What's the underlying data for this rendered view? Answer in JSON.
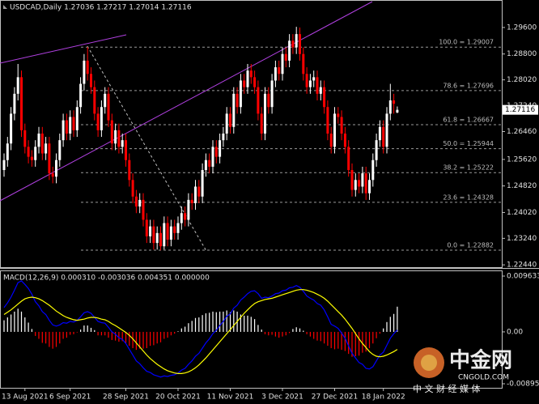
{
  "chart_data": {
    "type": "candlestick",
    "title": "USDCAD,Daily  1.27036 1.27217 1.27014 1.27116",
    "categories": [
      null,
      null,
      null,
      null,
      null,
      null,
      "13 Aug 2021",
      null,
      null,
      null,
      null,
      null,
      null,
      null,
      null,
      null,
      null,
      null,
      null,
      "6 Sep 2021",
      null,
      null,
      null,
      null,
      null,
      null,
      null,
      null,
      null,
      null,
      null,
      null,
      null,
      null,
      null,
      "28 Sep 2021",
      null,
      null,
      null,
      null,
      null,
      null,
      null,
      null,
      null,
      null,
      null,
      null,
      null,
      null,
      "20 Oct 2021",
      null,
      null,
      null,
      null,
      null,
      null,
      null,
      null,
      null,
      null,
      null,
      null,
      null,
      null,
      "11 Nov 2021",
      null,
      null,
      null,
      null,
      null,
      null,
      null,
      null,
      null,
      null,
      null,
      null,
      null,
      null,
      "3 Dec 2021",
      null,
      null,
      null,
      null,
      null,
      null,
      null,
      null,
      null,
      null,
      null,
      null,
      null,
      null,
      "27 Dec 2021",
      null,
      null,
      null,
      null,
      null,
      null,
      null,
      null,
      null,
      null,
      null,
      null,
      null,
      "18 Jan 2022",
      null,
      null,
      null,
      null
    ],
    "open": [
      1.253,
      1.256,
      1.261,
      1.27,
      1.276,
      1.281,
      1.265,
      1.26,
      1.257,
      1.256,
      1.26,
      1.264,
      1.258,
      1.261,
      1.252,
      1.251,
      1.256,
      1.262,
      1.268,
      1.264,
      1.269,
      1.265,
      1.272,
      1.279,
      1.286,
      1.282,
      1.278,
      1.27,
      1.265,
      1.272,
      1.276,
      1.268,
      1.261,
      1.265,
      1.26,
      1.262,
      1.256,
      1.25,
      1.245,
      1.242,
      1.244,
      1.238,
      1.233,
      1.236,
      1.231,
      1.234,
      1.23,
      1.237,
      1.232,
      1.236,
      1.234,
      1.237,
      1.24,
      1.238,
      1.244,
      1.243,
      1.248,
      1.245,
      1.253,
      1.256,
      1.254,
      1.26,
      1.257,
      1.262,
      1.264,
      1.27,
      1.266,
      1.276,
      1.272,
      1.28,
      1.278,
      1.283,
      1.281,
      1.278,
      1.27,
      1.264,
      1.276,
      1.272,
      1.28,
      1.284,
      1.282,
      1.288,
      1.286,
      1.292,
      1.29,
      1.294,
      1.288,
      1.282,
      1.278,
      1.28,
      1.281,
      1.276,
      1.278,
      1.272,
      1.264,
      1.26,
      1.27,
      1.269,
      1.264,
      1.26,
      1.253,
      1.247,
      1.25,
      1.248,
      1.252,
      1.246,
      1.25,
      1.256,
      1.262,
      1.266,
      1.26,
      1.27,
      1.274,
      1.27036
    ],
    "high": [
      1.258,
      1.263,
      1.272,
      1.278,
      1.285,
      1.283,
      1.267,
      1.262,
      1.259,
      1.262,
      1.266,
      1.266,
      1.263,
      1.263,
      1.254,
      1.258,
      1.264,
      1.27,
      1.27,
      1.271,
      1.271,
      1.274,
      1.281,
      1.288,
      1.2901,
      1.284,
      1.28,
      1.272,
      1.274,
      1.278,
      1.278,
      1.27,
      1.267,
      1.267,
      1.264,
      1.264,
      1.258,
      1.252,
      1.247,
      1.246,
      1.246,
      1.24,
      1.238,
      1.238,
      1.236,
      1.236,
      1.239,
      1.239,
      1.238,
      1.238,
      1.239,
      1.242,
      1.242,
      1.246,
      1.246,
      1.25,
      1.25,
      1.255,
      1.258,
      1.258,
      1.262,
      1.262,
      1.264,
      1.266,
      1.272,
      1.272,
      1.278,
      1.278,
      1.282,
      1.282,
      1.285,
      1.285,
      1.283,
      1.28,
      1.272,
      1.278,
      1.278,
      1.282,
      1.286,
      1.286,
      1.29,
      1.29,
      1.294,
      1.294,
      1.2962,
      1.296,
      1.29,
      1.284,
      1.282,
      1.283,
      1.283,
      1.28,
      1.28,
      1.274,
      1.266,
      1.272,
      1.272,
      1.271,
      1.266,
      1.262,
      1.255,
      1.252,
      1.252,
      1.254,
      1.254,
      1.252,
      1.258,
      1.264,
      1.268,
      1.268,
      1.272,
      1.279,
      1.276,
      1.27217
    ],
    "low": [
      1.251,
      1.254,
      1.259,
      1.268,
      1.274,
      1.263,
      1.258,
      1.255,
      1.254,
      1.254,
      1.258,
      1.256,
      1.256,
      1.25,
      1.249,
      1.249,
      1.254,
      1.26,
      1.262,
      1.262,
      1.263,
      1.263,
      1.27,
      1.277,
      1.28,
      1.276,
      1.268,
      1.263,
      1.263,
      1.27,
      1.266,
      1.259,
      1.259,
      1.258,
      1.258,
      1.254,
      1.248,
      1.243,
      1.24,
      1.24,
      1.236,
      1.231,
      1.231,
      1.229,
      1.229,
      1.2288,
      1.229,
      1.23,
      1.23,
      1.232,
      1.232,
      1.235,
      1.236,
      1.236,
      1.241,
      1.241,
      1.243,
      1.243,
      1.251,
      1.252,
      1.252,
      1.255,
      1.255,
      1.26,
      1.262,
      1.264,
      1.264,
      1.27,
      1.27,
      1.276,
      1.276,
      1.279,
      1.276,
      1.268,
      1.262,
      1.262,
      1.27,
      1.27,
      1.278,
      1.28,
      1.28,
      1.284,
      1.284,
      1.288,
      1.288,
      1.286,
      1.28,
      1.276,
      1.276,
      1.278,
      1.274,
      1.274,
      1.27,
      1.262,
      1.258,
      1.258,
      1.267,
      1.262,
      1.258,
      1.251,
      1.245,
      1.245,
      1.246,
      1.246,
      1.244,
      1.244,
      1.248,
      1.254,
      1.26,
      1.258,
      1.258,
      1.268,
      1.27,
      1.27014
    ],
    "close": [
      1.256,
      1.261,
      1.27,
      1.276,
      1.281,
      1.265,
      1.26,
      1.257,
      1.256,
      1.26,
      1.264,
      1.258,
      1.261,
      1.252,
      1.251,
      1.256,
      1.262,
      1.268,
      1.264,
      1.269,
      1.265,
      1.272,
      1.279,
      1.286,
      1.282,
      1.278,
      1.27,
      1.265,
      1.272,
      1.276,
      1.268,
      1.261,
      1.265,
      1.26,
      1.262,
      1.256,
      1.25,
      1.245,
      1.242,
      1.244,
      1.238,
      1.233,
      1.236,
      1.231,
      1.234,
      1.23,
      1.237,
      1.232,
      1.236,
      1.234,
      1.237,
      1.24,
      1.238,
      1.244,
      1.243,
      1.248,
      1.245,
      1.253,
      1.256,
      1.254,
      1.26,
      1.257,
      1.262,
      1.264,
      1.27,
      1.266,
      1.276,
      1.272,
      1.28,
      1.278,
      1.283,
      1.281,
      1.278,
      1.27,
      1.264,
      1.276,
      1.272,
      1.28,
      1.284,
      1.282,
      1.288,
      1.286,
      1.292,
      1.29,
      1.294,
      1.288,
      1.282,
      1.278,
      1.28,
      1.281,
      1.276,
      1.278,
      1.272,
      1.264,
      1.26,
      1.27,
      1.269,
      1.264,
      1.26,
      1.253,
      1.247,
      1.25,
      1.248,
      1.252,
      1.246,
      1.25,
      1.256,
      1.262,
      1.266,
      1.26,
      1.27,
      1.274,
      1.273,
      1.27116
    ],
    "bull_color": "#ffffff",
    "bear_color": "#ff0000",
    "ylim": [
      1.2237,
      1.3038
    ],
    "yticks": [
      {
        "value": 1.296,
        "label": "1.29600"
      },
      {
        "value": 1.288,
        "label": "1.28800"
      },
      {
        "value": 1.2802,
        "label": "1.28020"
      },
      {
        "value": 1.2724,
        "label": "1.27240"
      },
      {
        "value": 1.2646,
        "label": "1.26460"
      },
      {
        "value": 1.2562,
        "label": "1.25620"
      },
      {
        "value": 1.2482,
        "label": "1.24820"
      },
      {
        "value": 1.2402,
        "label": "1.24020"
      },
      {
        "value": 1.2324,
        "label": "1.23240"
      },
      {
        "value": 1.2244,
        "label": "1.22440"
      }
    ],
    "fib_levels": [
      {
        "value": 1.29007,
        "label": "100.0 = 1.29007"
      },
      {
        "value": 1.27696,
        "label": "78.6 = 1.27696"
      },
      {
        "value": 1.26667,
        "label": "61.8 = 1.26667"
      },
      {
        "value": 1.25944,
        "label": "50.0 = 1.25944"
      },
      {
        "value": 1.25222,
        "label": "38.2 = 1.25222"
      },
      {
        "value": 1.24328,
        "label": "23.6 = 1.24328"
      },
      {
        "value": 1.22882,
        "label": "0.0 = 1.22882"
      }
    ],
    "indicator": {
      "type": "macd",
      "title": "MACD(12,26,9) 0.000310 -0.003036 0.004351 0.000000",
      "ylim": [
        -0.008955,
        0.009633
      ],
      "yticks": [
        0.009633,
        {
          "value": 0,
          "label": "0.00"
        },
        -0.008955
      ],
      "histogram": {
        "pos_color": "#ffffff",
        "neg_color": "#ff0000",
        "values": [
          0.002,
          0.0025,
          0.003,
          0.0035,
          0.004,
          0.0035,
          0.0025,
          0.0016,
          0.0005,
          -0.0007,
          -0.0012,
          -0.0019,
          -0.002,
          -0.0026,
          -0.0029,
          -0.0026,
          -0.002,
          -0.0012,
          -0.001,
          -0.0005,
          -0.0004,
          -0.0001,
          0.0004,
          0.0011,
          0.0011,
          0.0007,
          0.0003,
          -0.0006,
          -0.0006,
          -0.0006,
          -0.001,
          -0.0014,
          -0.0015,
          -0.0017,
          -0.0016,
          -0.0019,
          -0.0024,
          -0.0028,
          -0.0031,
          -0.0029,
          -0.0029,
          -0.0028,
          -0.0024,
          -0.0023,
          -0.002,
          -0.0018,
          -0.0012,
          -0.001,
          -0.0006,
          -0.0003,
          0.0001,
          0.0006,
          0.0009,
          0.0015,
          0.0019,
          0.0024,
          0.0025,
          0.0029,
          0.0032,
          0.0033,
          0.0035,
          0.0034,
          0.0035,
          0.0035,
          0.0037,
          0.0034,
          0.0037,
          0.0035,
          0.003,
          0.0028,
          0.0028,
          0.0026,
          0.0022,
          0.0012,
          0.0004,
          -0.0004,
          -0.0006,
          -0.0005,
          -0.0008,
          -0.001,
          -0.0008,
          -0.0006,
          -0.0002,
          0.0005,
          0.0008,
          0.0006,
          0.0002,
          -0.0004,
          -0.0008,
          -0.0012,
          -0.0015,
          -0.0016,
          -0.002,
          -0.0024,
          -0.0028,
          -0.003,
          -0.0029,
          -0.0031,
          -0.0033,
          -0.0038,
          -0.0043,
          -0.0042,
          -0.0041,
          -0.0036,
          -0.0034,
          -0.0028,
          -0.002,
          -0.0011,
          -0.0003,
          0.0006,
          0.0017,
          0.0026,
          0.0031,
          0.004351
        ]
      },
      "series": [
        {
          "color": "#0000ff",
          "values": [
            0.0042,
            0.005,
            0.006,
            0.0072,
            0.0085,
            0.0088,
            0.0082,
            0.0075,
            0.0065,
            0.0052,
            0.0045,
            0.0035,
            0.003,
            0.002,
            0.0012,
            0.001,
            0.0012,
            0.0016,
            0.0015,
            0.0018,
            0.0017,
            0.002,
            0.0026,
            0.0033,
            0.0035,
            0.0032,
            0.0025,
            0.0018,
            0.0016,
            0.0015,
            0.0008,
            0.0,
            -0.0004,
            -0.001,
            -0.0013,
            -0.002,
            -0.003,
            -0.004,
            -0.005,
            -0.0055,
            -0.0062,
            -0.0068,
            -0.007,
            -0.0074,
            -0.0076,
            -0.0078,
            -0.0076,
            -0.0077,
            -0.0075,
            -0.0074,
            -0.0071,
            -0.0066,
            -0.0063,
            -0.0056,
            -0.005,
            -0.0042,
            -0.0037,
            -0.0028,
            -0.0019,
            -0.0012,
            -0.0003,
            0.0003,
            0.0011,
            0.0018,
            0.0027,
            0.0031,
            0.0041,
            0.0046,
            0.0055,
            0.006,
            0.0066,
            0.007,
            0.0071,
            0.0066,
            0.0058,
            0.006,
            0.0059,
            0.0062,
            0.0066,
            0.0067,
            0.0071,
            0.0072,
            0.0076,
            0.0077,
            0.008,
            0.0077,
            0.007,
            0.0062,
            0.0058,
            0.0055,
            0.0049,
            0.0046,
            0.0038,
            0.0026,
            0.0013,
            0.001,
            0.0006,
            -0.0002,
            -0.0011,
            -0.0024,
            -0.0037,
            -0.0045,
            -0.0053,
            -0.0056,
            -0.0063,
            -0.0064,
            -0.006,
            -0.005,
            -0.004,
            -0.0035,
            -0.0023,
            -0.0011,
            -0.0003,
            0.00031
          ]
        },
        {
          "color": "#ffff00",
          "values": [
            0.003,
            0.0034,
            0.0038,
            0.0043,
            0.0048,
            0.0053,
            0.0057,
            0.0059,
            0.006,
            0.0059,
            0.0057,
            0.0054,
            0.005,
            0.0046,
            0.0041,
            0.0036,
            0.0032,
            0.0028,
            0.0025,
            0.0023,
            0.0021,
            0.002,
            0.0021,
            0.0022,
            0.0024,
            0.0025,
            0.0025,
            0.0024,
            0.0022,
            0.0021,
            0.0018,
            0.0014,
            0.0011,
            0.0007,
            0.0003,
            -0.0001,
            -0.0006,
            -0.0012,
            -0.0019,
            -0.0026,
            -0.0033,
            -0.004,
            -0.0046,
            -0.0051,
            -0.0056,
            -0.006,
            -0.0064,
            -0.0067,
            -0.0069,
            -0.0071,
            -0.0072,
            -0.0072,
            -0.0071,
            -0.0069,
            -0.0066,
            -0.0062,
            -0.0057,
            -0.0051,
            -0.0045,
            -0.0038,
            -0.0031,
            -0.0024,
            -0.0017,
            -0.001,
            -0.0003,
            0.0004,
            0.0011,
            0.0018,
            0.0025,
            0.0032,
            0.0038,
            0.0044,
            0.0049,
            0.0052,
            0.0054,
            0.0056,
            0.0057,
            0.0058,
            0.006,
            0.0062,
            0.0064,
            0.0066,
            0.0068,
            0.007,
            0.0072,
            0.0073,
            0.0073,
            0.0072,
            0.007,
            0.0068,
            0.0065,
            0.0062,
            0.0058,
            0.0053,
            0.0047,
            0.0041,
            0.0035,
            0.0029,
            0.0022,
            0.0014,
            0.0006,
            -0.0003,
            -0.0012,
            -0.002,
            -0.0027,
            -0.0034,
            -0.0039,
            -0.0042,
            -0.0043,
            -0.0042,
            -0.004,
            -0.0037,
            -0.0034,
            -0.003036
          ]
        }
      ]
    }
  },
  "watermark": {
    "brand": "中金网",
    "site": "CNGOLD.COM",
    "tagline": "中 文 财 经 媒 体"
  }
}
